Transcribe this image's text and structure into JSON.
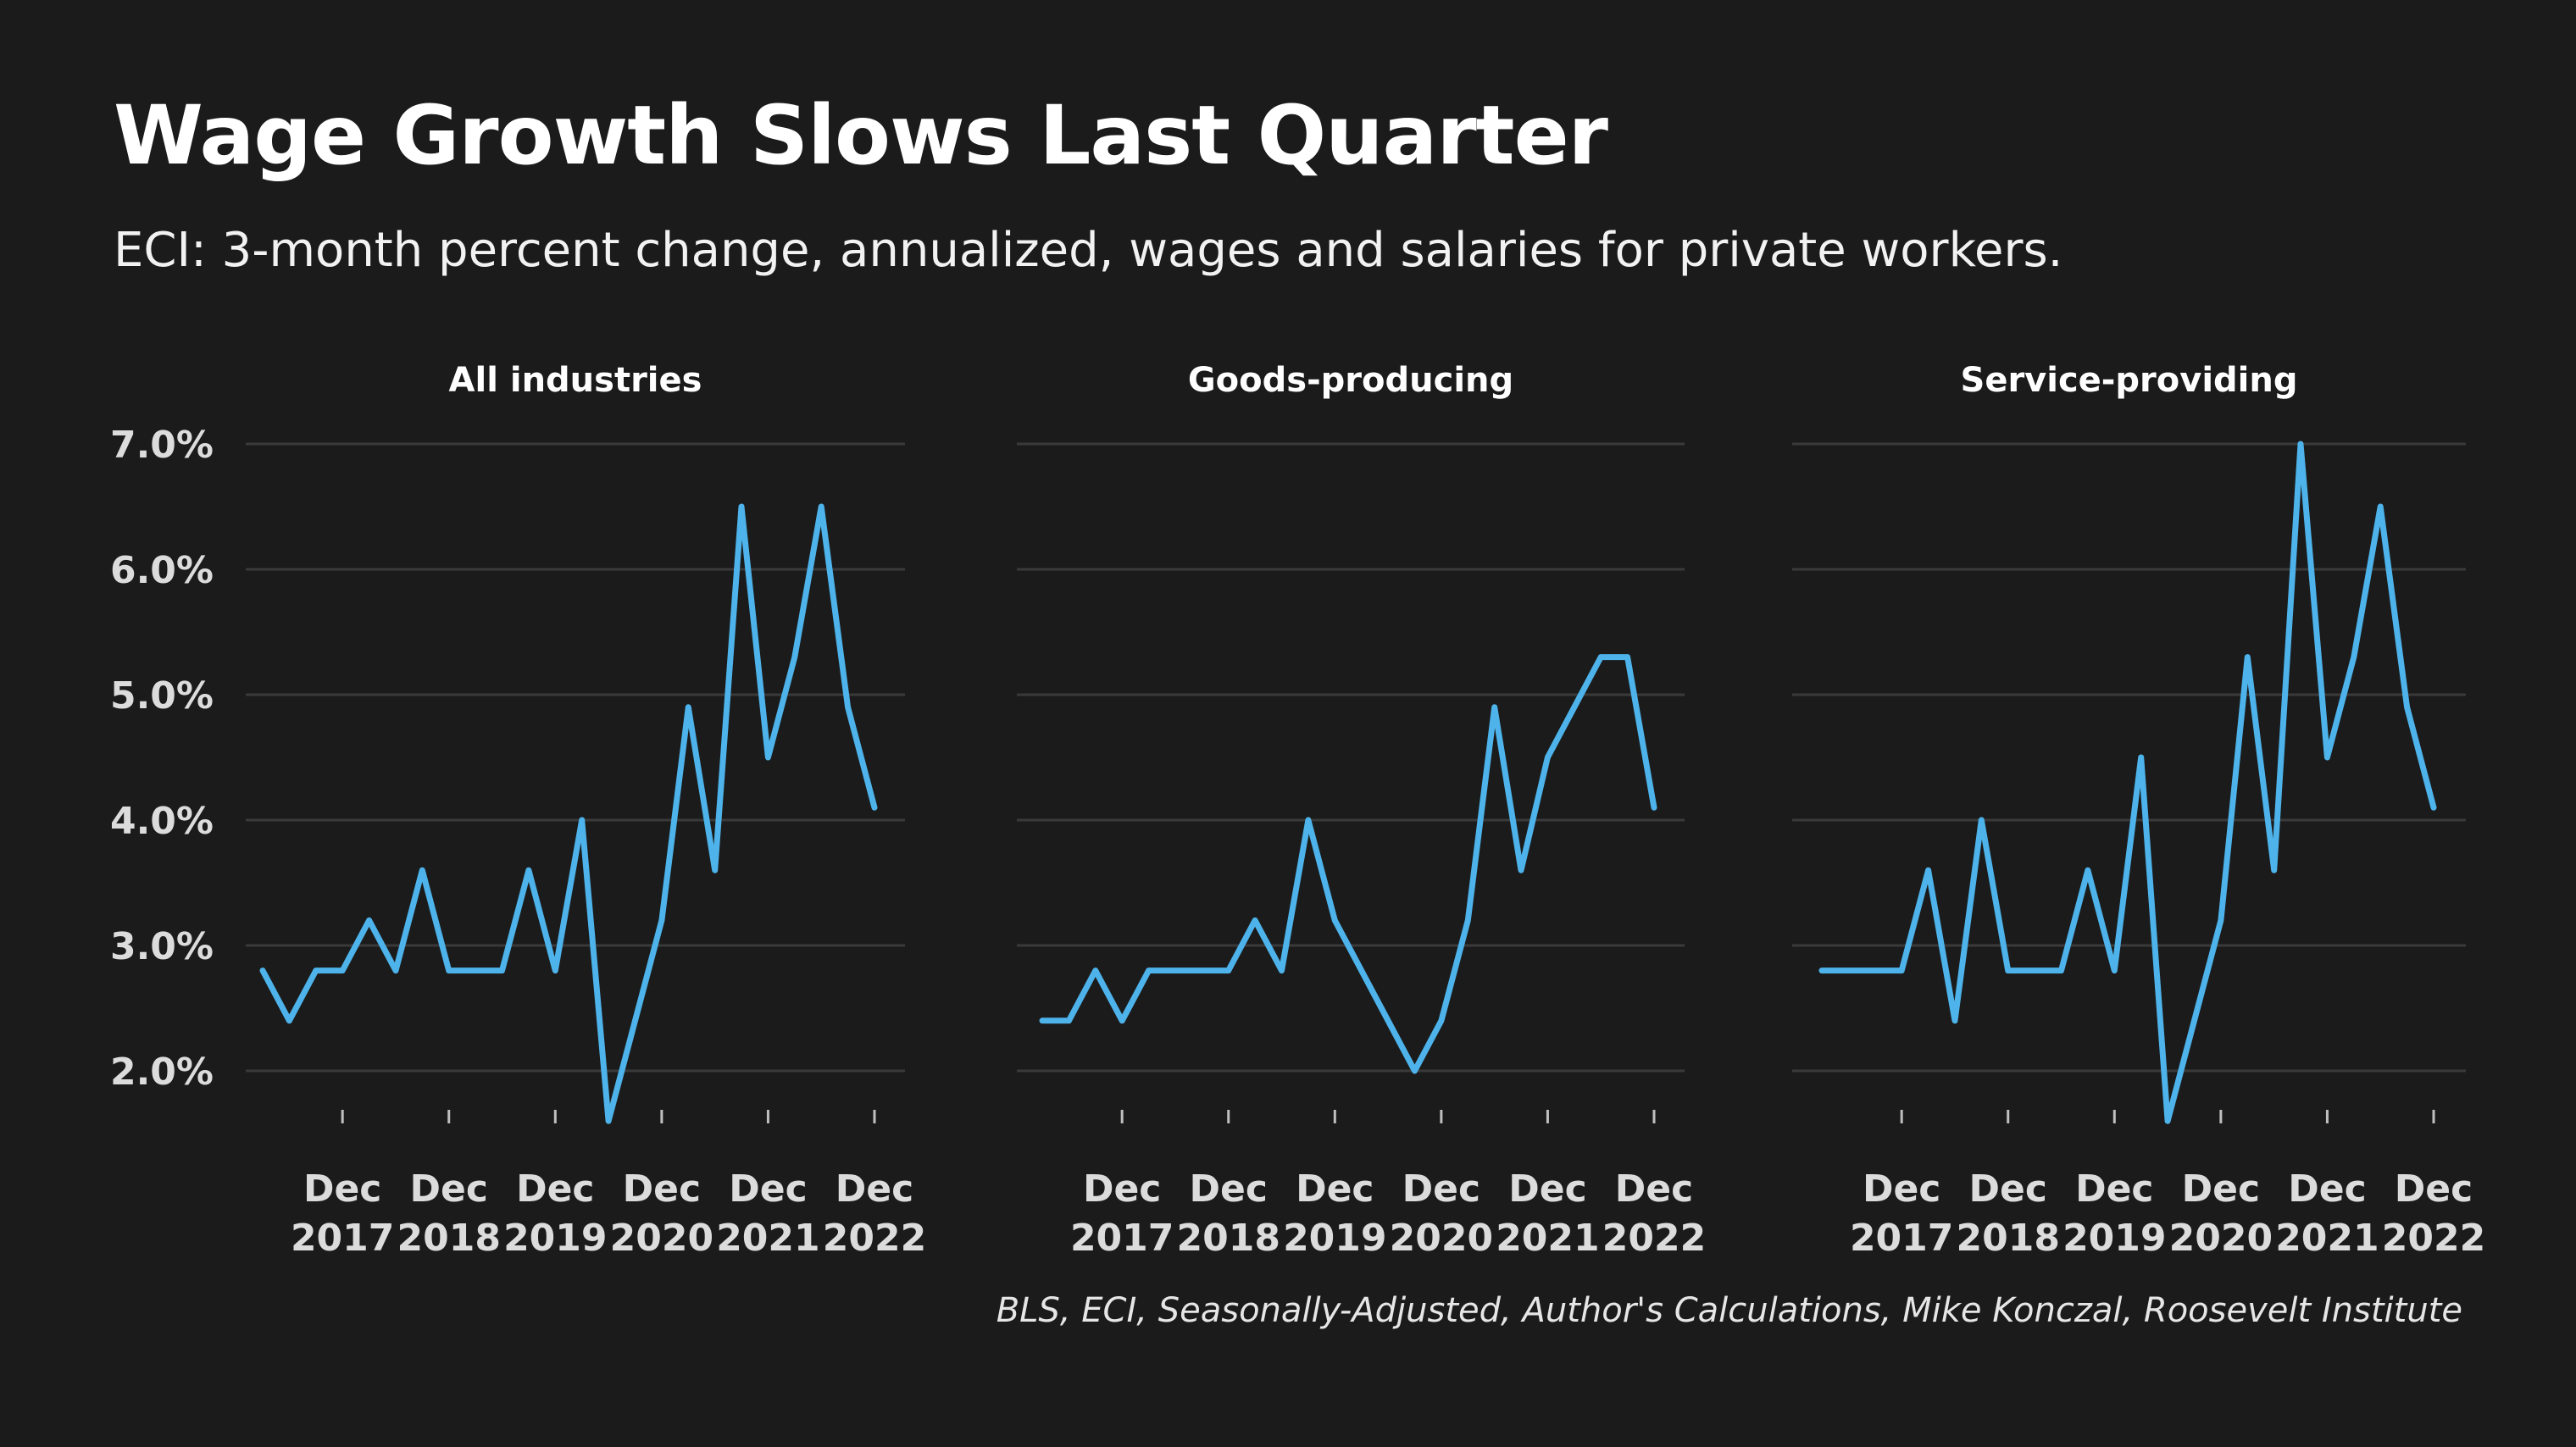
{
  "header": {
    "title": "Wage Growth Slows Last Quarter",
    "subtitle": "ECI: 3-month percent change, annualized, wages and salaries for private workers."
  },
  "source": "BLS, ECI, Seasonally-Adjusted, Author's Calculations, Mike Konczal, Roosevelt Institute",
  "colors": {
    "line": "#4db3ea",
    "background": "#1b1b1b"
  },
  "chart_data": [
    {
      "type": "line",
      "title": "All industries",
      "x": [
        "Mar 2017",
        "Jun 2017",
        "Sep 2017",
        "Dec 2017",
        "Mar 2018",
        "Jun 2018",
        "Sep 2018",
        "Dec 2018",
        "Mar 2019",
        "Jun 2019",
        "Sep 2019",
        "Dec 2019",
        "Mar 2020",
        "Jun 2020",
        "Sep 2020",
        "Dec 2020",
        "Mar 2021",
        "Jun 2021",
        "Sep 2021",
        "Dec 2021",
        "Mar 2022",
        "Jun 2022",
        "Sep 2022",
        "Dec 2022"
      ],
      "series": [
        {
          "values": [
            2.8,
            2.4,
            2.8,
            2.8,
            3.2,
            2.8,
            3.6,
            2.8,
            2.8,
            2.8,
            3.6,
            2.8,
            4.0,
            1.6,
            2.4,
            3.2,
            4.9,
            3.6,
            6.5,
            4.5,
            5.3,
            6.5,
            4.9,
            4.1
          ]
        }
      ],
      "ylim": [
        1.5,
        7.0
      ],
      "yticks": [
        "7.0%",
        "6.0%",
        "5.0%",
        "4.0%",
        "3.0%",
        "2.0%"
      ],
      "xticks": [
        {
          "line1": "Dec",
          "line2": "2017"
        },
        {
          "line1": "Dec",
          "line2": "2018"
        },
        {
          "line1": "Dec",
          "line2": "2019"
        },
        {
          "line1": "Dec",
          "line2": "2020"
        },
        {
          "line1": "Dec",
          "line2": "2021"
        },
        {
          "line1": "Dec",
          "line2": "2022"
        }
      ],
      "grid": true
    },
    {
      "type": "line",
      "title": "Goods-producing",
      "x": [
        "Mar 2017",
        "Jun 2017",
        "Sep 2017",
        "Dec 2017",
        "Mar 2018",
        "Jun 2018",
        "Sep 2018",
        "Dec 2018",
        "Mar 2019",
        "Jun 2019",
        "Sep 2019",
        "Dec 2019",
        "Mar 2020",
        "Jun 2020",
        "Sep 2020",
        "Dec 2020",
        "Mar 2021",
        "Jun 2021",
        "Sep 2021",
        "Dec 2021",
        "Mar 2022",
        "Jun 2022",
        "Sep 2022",
        "Dec 2022"
      ],
      "series": [
        {
          "values": [
            2.4,
            2.4,
            2.8,
            2.4,
            2.8,
            2.8,
            2.8,
            2.8,
            3.2,
            2.8,
            4.0,
            3.2,
            2.8,
            2.4,
            2.0,
            2.4,
            3.2,
            4.9,
            3.6,
            4.5,
            4.9,
            5.3,
            5.3,
            4.1
          ]
        }
      ],
      "ylim": [
        1.5,
        7.0
      ],
      "yticks": [
        "7.0%",
        "6.0%",
        "5.0%",
        "4.0%",
        "3.0%",
        "2.0%"
      ],
      "xticks": [
        {
          "line1": "Dec",
          "line2": "2017"
        },
        {
          "line1": "Dec",
          "line2": "2018"
        },
        {
          "line1": "Dec",
          "line2": "2019"
        },
        {
          "line1": "Dec",
          "line2": "2020"
        },
        {
          "line1": "Dec",
          "line2": "2021"
        },
        {
          "line1": "Dec",
          "line2": "2022"
        }
      ],
      "grid": true
    },
    {
      "type": "line",
      "title": "Service-providing",
      "x": [
        "Mar 2017",
        "Jun 2017",
        "Sep 2017",
        "Dec 2017",
        "Mar 2018",
        "Jun 2018",
        "Sep 2018",
        "Dec 2018",
        "Mar 2019",
        "Jun 2019",
        "Sep 2019",
        "Dec 2019",
        "Mar 2020",
        "Jun 2020",
        "Sep 2020",
        "Dec 2020",
        "Mar 2021",
        "Jun 2021",
        "Sep 2021",
        "Dec 2021",
        "Mar 2022",
        "Jun 2022",
        "Sep 2022",
        "Dec 2022"
      ],
      "series": [
        {
          "values": [
            2.8,
            2.8,
            2.8,
            2.8,
            3.6,
            2.4,
            4.0,
            2.8,
            2.8,
            2.8,
            3.6,
            2.8,
            4.5,
            1.6,
            2.4,
            3.2,
            5.3,
            3.6,
            7.0,
            4.5,
            5.3,
            6.5,
            4.9,
            4.1
          ]
        }
      ],
      "ylim": [
        1.5,
        7.0
      ],
      "yticks": [
        "7.0%",
        "6.0%",
        "5.0%",
        "4.0%",
        "3.0%",
        "2.0%"
      ],
      "xticks": [
        {
          "line1": "Dec",
          "line2": "2017"
        },
        {
          "line1": "Dec",
          "line2": "2018"
        },
        {
          "line1": "Dec",
          "line2": "2019"
        },
        {
          "line1": "Dec",
          "line2": "2020"
        },
        {
          "line1": "Dec",
          "line2": "2021"
        },
        {
          "line1": "Dec",
          "line2": "2022"
        }
      ],
      "grid": true
    }
  ]
}
